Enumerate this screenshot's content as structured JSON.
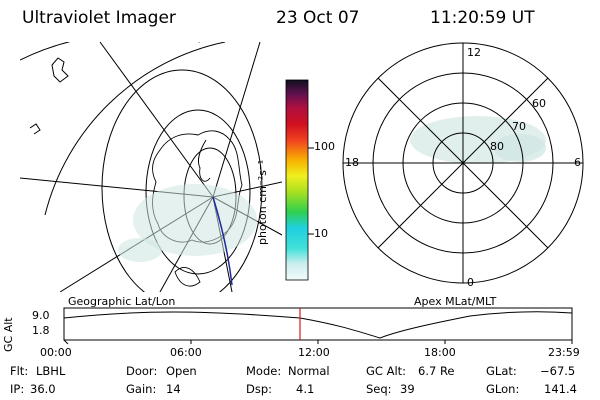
{
  "header": {
    "title": "Ultraviolet Imager",
    "date": "23 Oct 07",
    "time": "11:20:59 UT"
  },
  "colorbar": {
    "label": "photon cm⁻²s⁻¹",
    "ticks": [
      "100",
      "10"
    ]
  },
  "left_map": {
    "caption": "Geographic Lat/Lon"
  },
  "right_map": {
    "caption": "Apex MLat/MLT",
    "mlt_labels": [
      "12",
      "18",
      "6",
      "0"
    ],
    "lat_labels": [
      "60",
      "70",
      "80"
    ]
  },
  "timeline": {
    "axis_title": "GC Alt",
    "y_ticks": [
      "9.0",
      "1.8"
    ],
    "x_ticks": [
      "00:00",
      "06:00",
      "12:00",
      "18:00",
      "23:59"
    ]
  },
  "status": {
    "flt_label": "Flt:",
    "flt_value": "LBHL",
    "ip_label": "IP:",
    "ip_value": "36.0",
    "door_label": "Door:",
    "door_value": "Open",
    "gain_label": "Gain:",
    "gain_value": "14",
    "mode_label": "Mode:",
    "mode_value": "Normal",
    "dsp_label": "Dsp:",
    "dsp_value": "4.1",
    "gcalt_label": "GC Alt:",
    "gcalt_value": "6.7 Re",
    "seq_label": "Seq:",
    "seq_value": "39",
    "glat_label": "GLat:",
    "glat_value": "−67.5",
    "glon_label": "GLon:",
    "glon_value": "141.4"
  },
  "colors": {
    "line": "#000000",
    "marker": "#cc2222",
    "track": "#1f2a9a",
    "aurora": "#cfe6e2"
  }
}
